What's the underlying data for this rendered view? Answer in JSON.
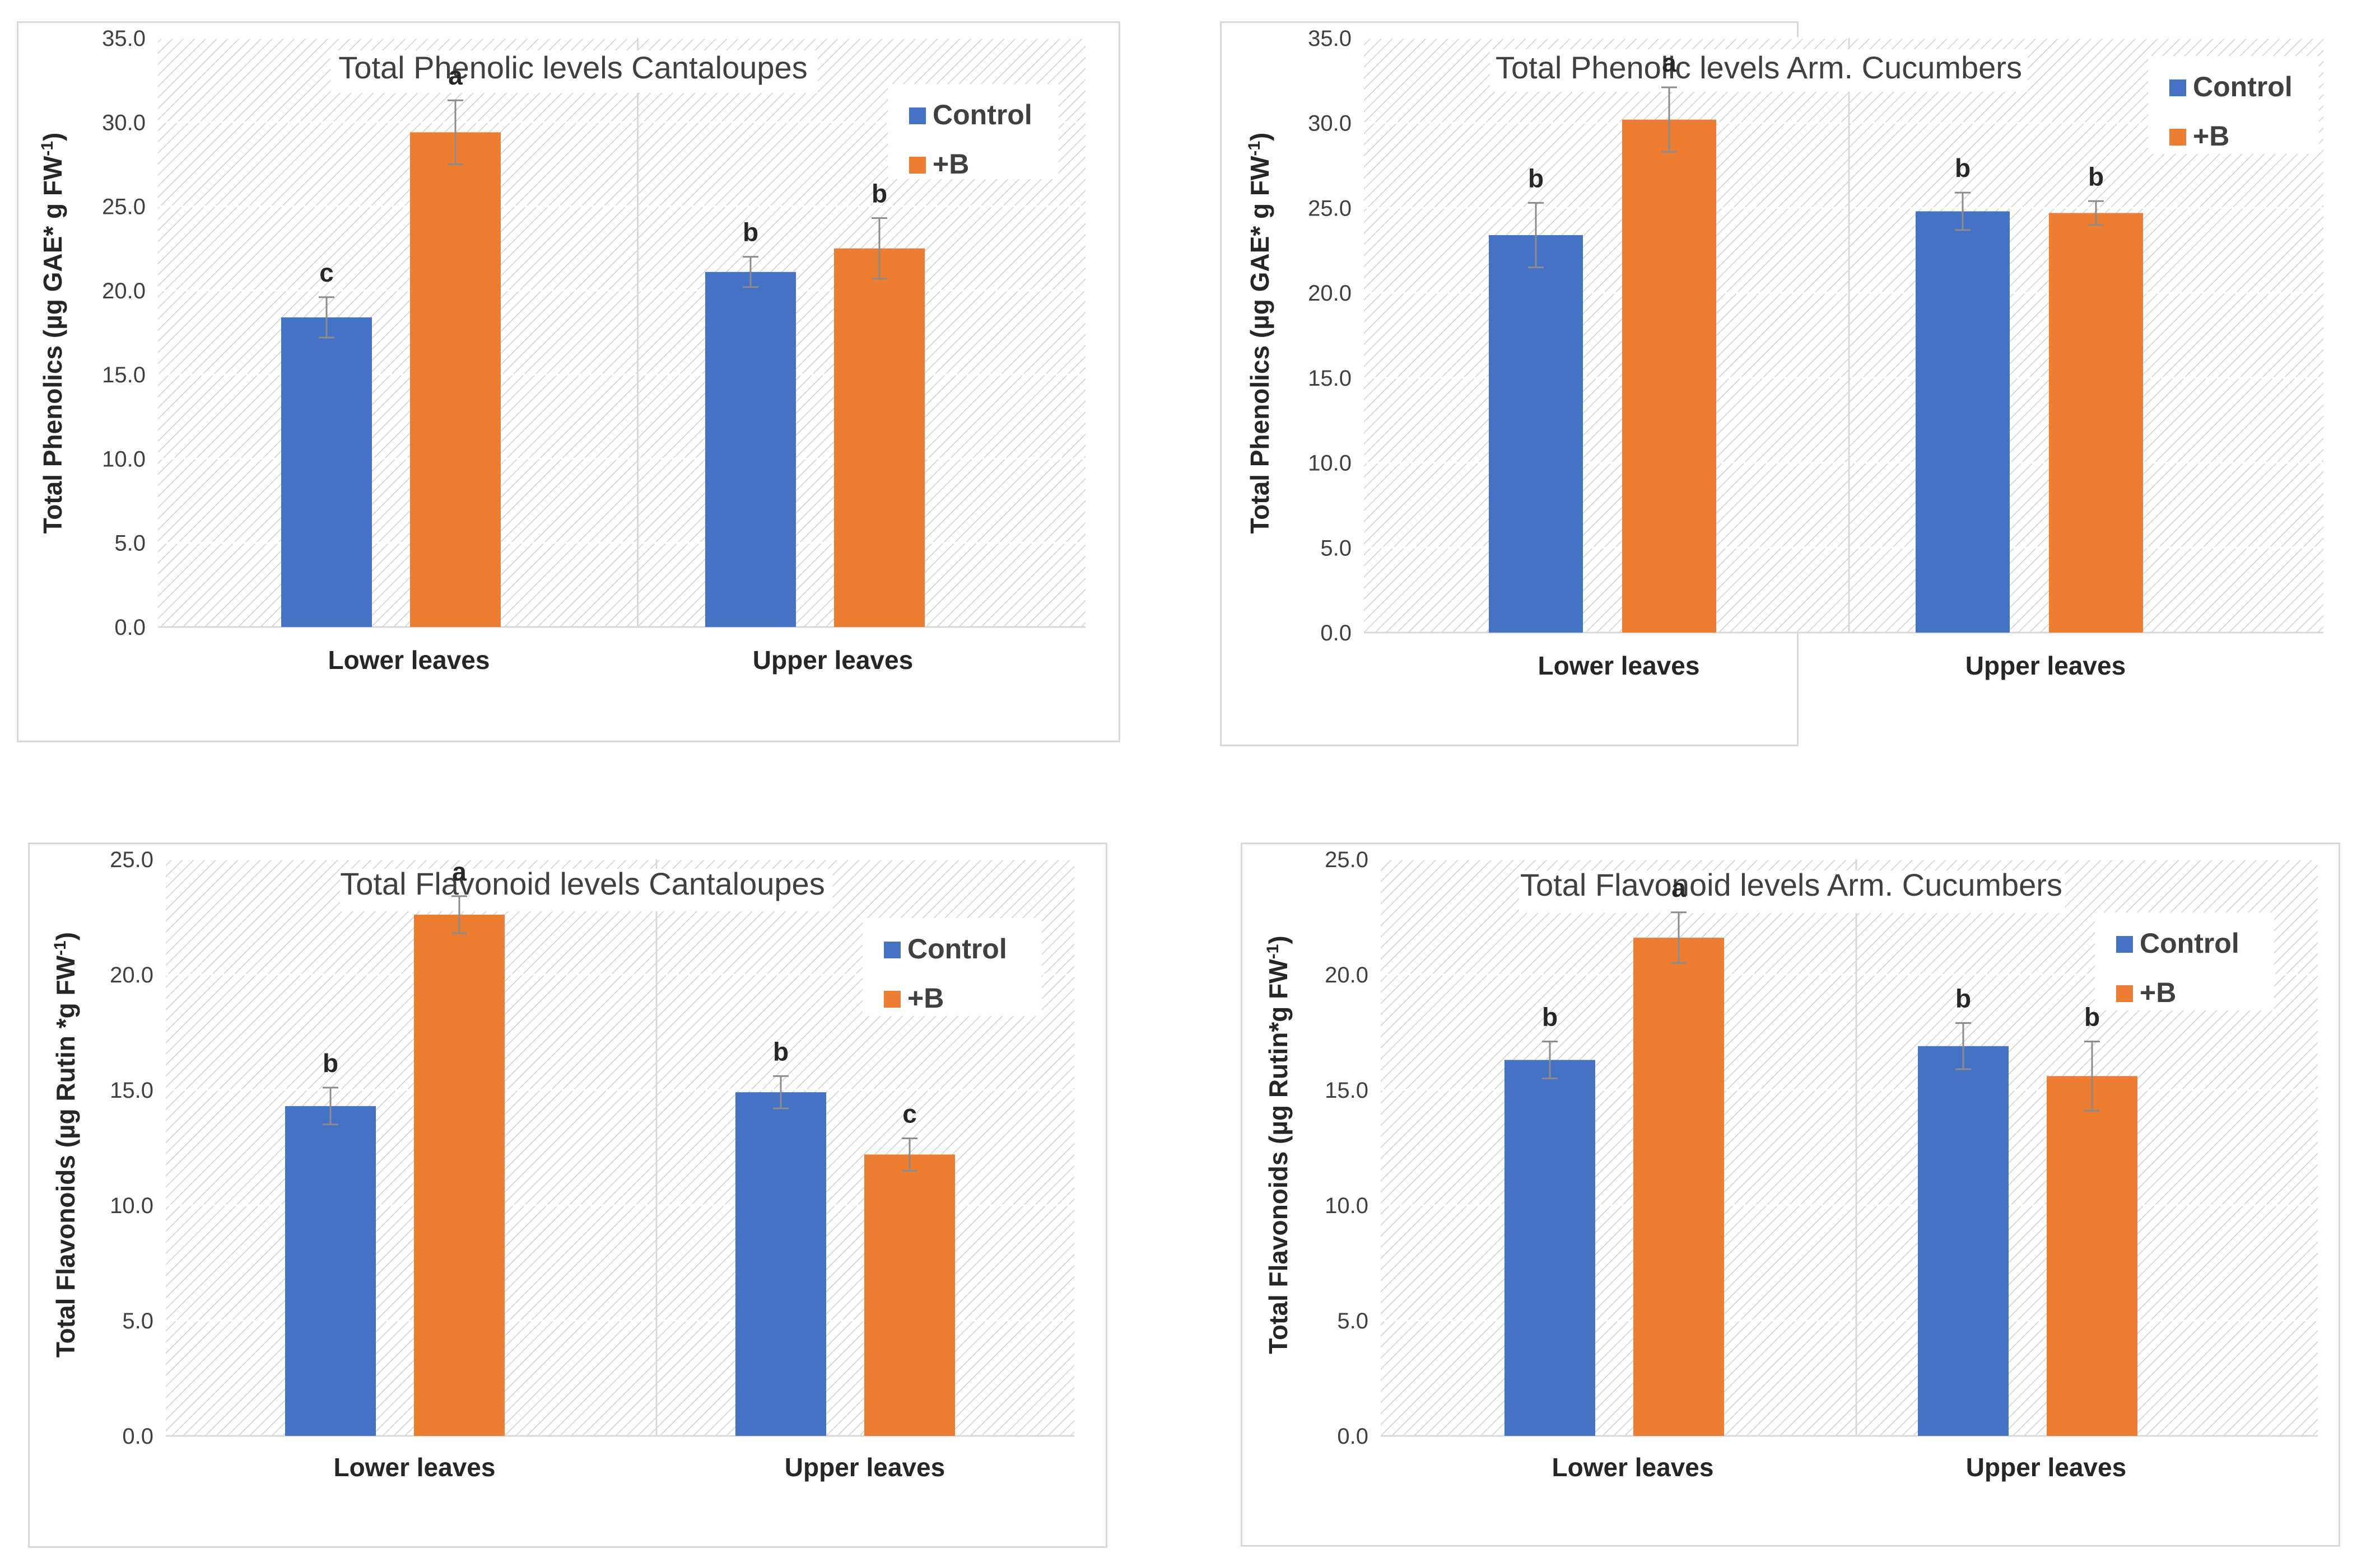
{
  "colors": {
    "control": "#4472C4",
    "boron": "#ED7D31",
    "grid": "#d9d9d9",
    "hatch": "#d0d0d0",
    "error_bar": "#8c8c8c"
  },
  "chart_data": [
    {
      "type": "bar",
      "title": "Total Phenolic levels Cantaloupes",
      "ylabel": "Total Phenolics (µg GAE* g FW",
      "ylabel_sup": "-1",
      "ylabel_end": ")",
      "ylim": [
        0,
        35
      ],
      "yticks": [
        0,
        5,
        10,
        15,
        20,
        25,
        30,
        35
      ],
      "ytick_labels": [
        "0.0",
        "5.0",
        "10.0",
        "15.0",
        "20.0",
        "25.0",
        "30.0",
        "35.0"
      ],
      "categories": [
        "Lower leaves",
        "Upper leaves"
      ],
      "legend_position": "top-right",
      "series": [
        {
          "name": "Control",
          "values": [
            18.4,
            21.1
          ],
          "errors": [
            1.2,
            0.9
          ],
          "letters": [
            "c",
            "b"
          ]
        },
        {
          "name": "+B",
          "values": [
            29.4,
            22.5
          ],
          "errors": [
            1.9,
            1.8
          ],
          "letters": [
            "a",
            "b"
          ]
        }
      ]
    },
    {
      "type": "bar",
      "title": "Total Phenolic levels Arm. Cucumbers",
      "ylabel": "Total Phenolics (µg GAE* g FW",
      "ylabel_sup": "-1",
      "ylabel_end": ")",
      "ylim": [
        0,
        35
      ],
      "yticks": [
        0,
        5,
        10,
        15,
        20,
        25,
        30,
        35
      ],
      "ytick_labels": [
        "0.0",
        "5.0",
        "10.0",
        "15.0",
        "20.0",
        "25.0",
        "30.0",
        "35.0"
      ],
      "categories": [
        "Lower leaves",
        "Upper leaves"
      ],
      "legend_position": "top-right",
      "series": [
        {
          "name": "Control",
          "values": [
            23.4,
            24.8
          ],
          "errors": [
            1.9,
            1.1
          ],
          "letters": [
            "b",
            "b"
          ]
        },
        {
          "name": "+B",
          "values": [
            30.2,
            24.7
          ],
          "errors": [
            1.9,
            0.7
          ],
          "letters": [
            "a",
            "b"
          ]
        }
      ]
    },
    {
      "type": "bar",
      "title": "Total Flavonoid levels Cantaloupes",
      "ylabel": "Total Flavonoids (µg Rutin *g FW",
      "ylabel_sup": "-1",
      "ylabel_end": ")",
      "ylim": [
        0,
        25
      ],
      "yticks": [
        0,
        5,
        10,
        15,
        20,
        25
      ],
      "ytick_labels": [
        "0.0",
        "5.0",
        "10.0",
        "15.0",
        "20.0",
        "25.0"
      ],
      "categories": [
        "Lower leaves",
        "Upper leaves"
      ],
      "legend_position": "top-right",
      "series": [
        {
          "name": "Control",
          "values": [
            14.3,
            14.9
          ],
          "errors": [
            0.8,
            0.7
          ],
          "letters": [
            "b",
            "b"
          ]
        },
        {
          "name": "+B",
          "values": [
            22.6,
            12.2
          ],
          "errors": [
            0.8,
            0.7
          ],
          "letters": [
            "a",
            "c"
          ]
        }
      ]
    },
    {
      "type": "bar",
      "title": "Total Flavonoid levels Arm. Cucumbers",
      "ylabel": "Total Flavonoids (µg Rutin*g FW",
      "ylabel_sup": "-1",
      "ylabel_end": ")",
      "ylim": [
        0,
        25
      ],
      "yticks": [
        0,
        5,
        10,
        15,
        20,
        25
      ],
      "ytick_labels": [
        "0.0",
        "5.0",
        "10.0",
        "15.0",
        "20.0",
        "25.0"
      ],
      "categories": [
        "Lower leaves",
        "Upper leaves"
      ],
      "legend_position": "top-right",
      "series": [
        {
          "name": "Control",
          "values": [
            16.3,
            16.9
          ],
          "errors": [
            0.8,
            1.0
          ],
          "letters": [
            "b",
            "b"
          ]
        },
        {
          "name": "+B",
          "values": [
            21.6,
            15.6
          ],
          "errors": [
            1.1,
            1.5
          ],
          "letters": [
            "a",
            "b"
          ]
        }
      ]
    }
  ]
}
